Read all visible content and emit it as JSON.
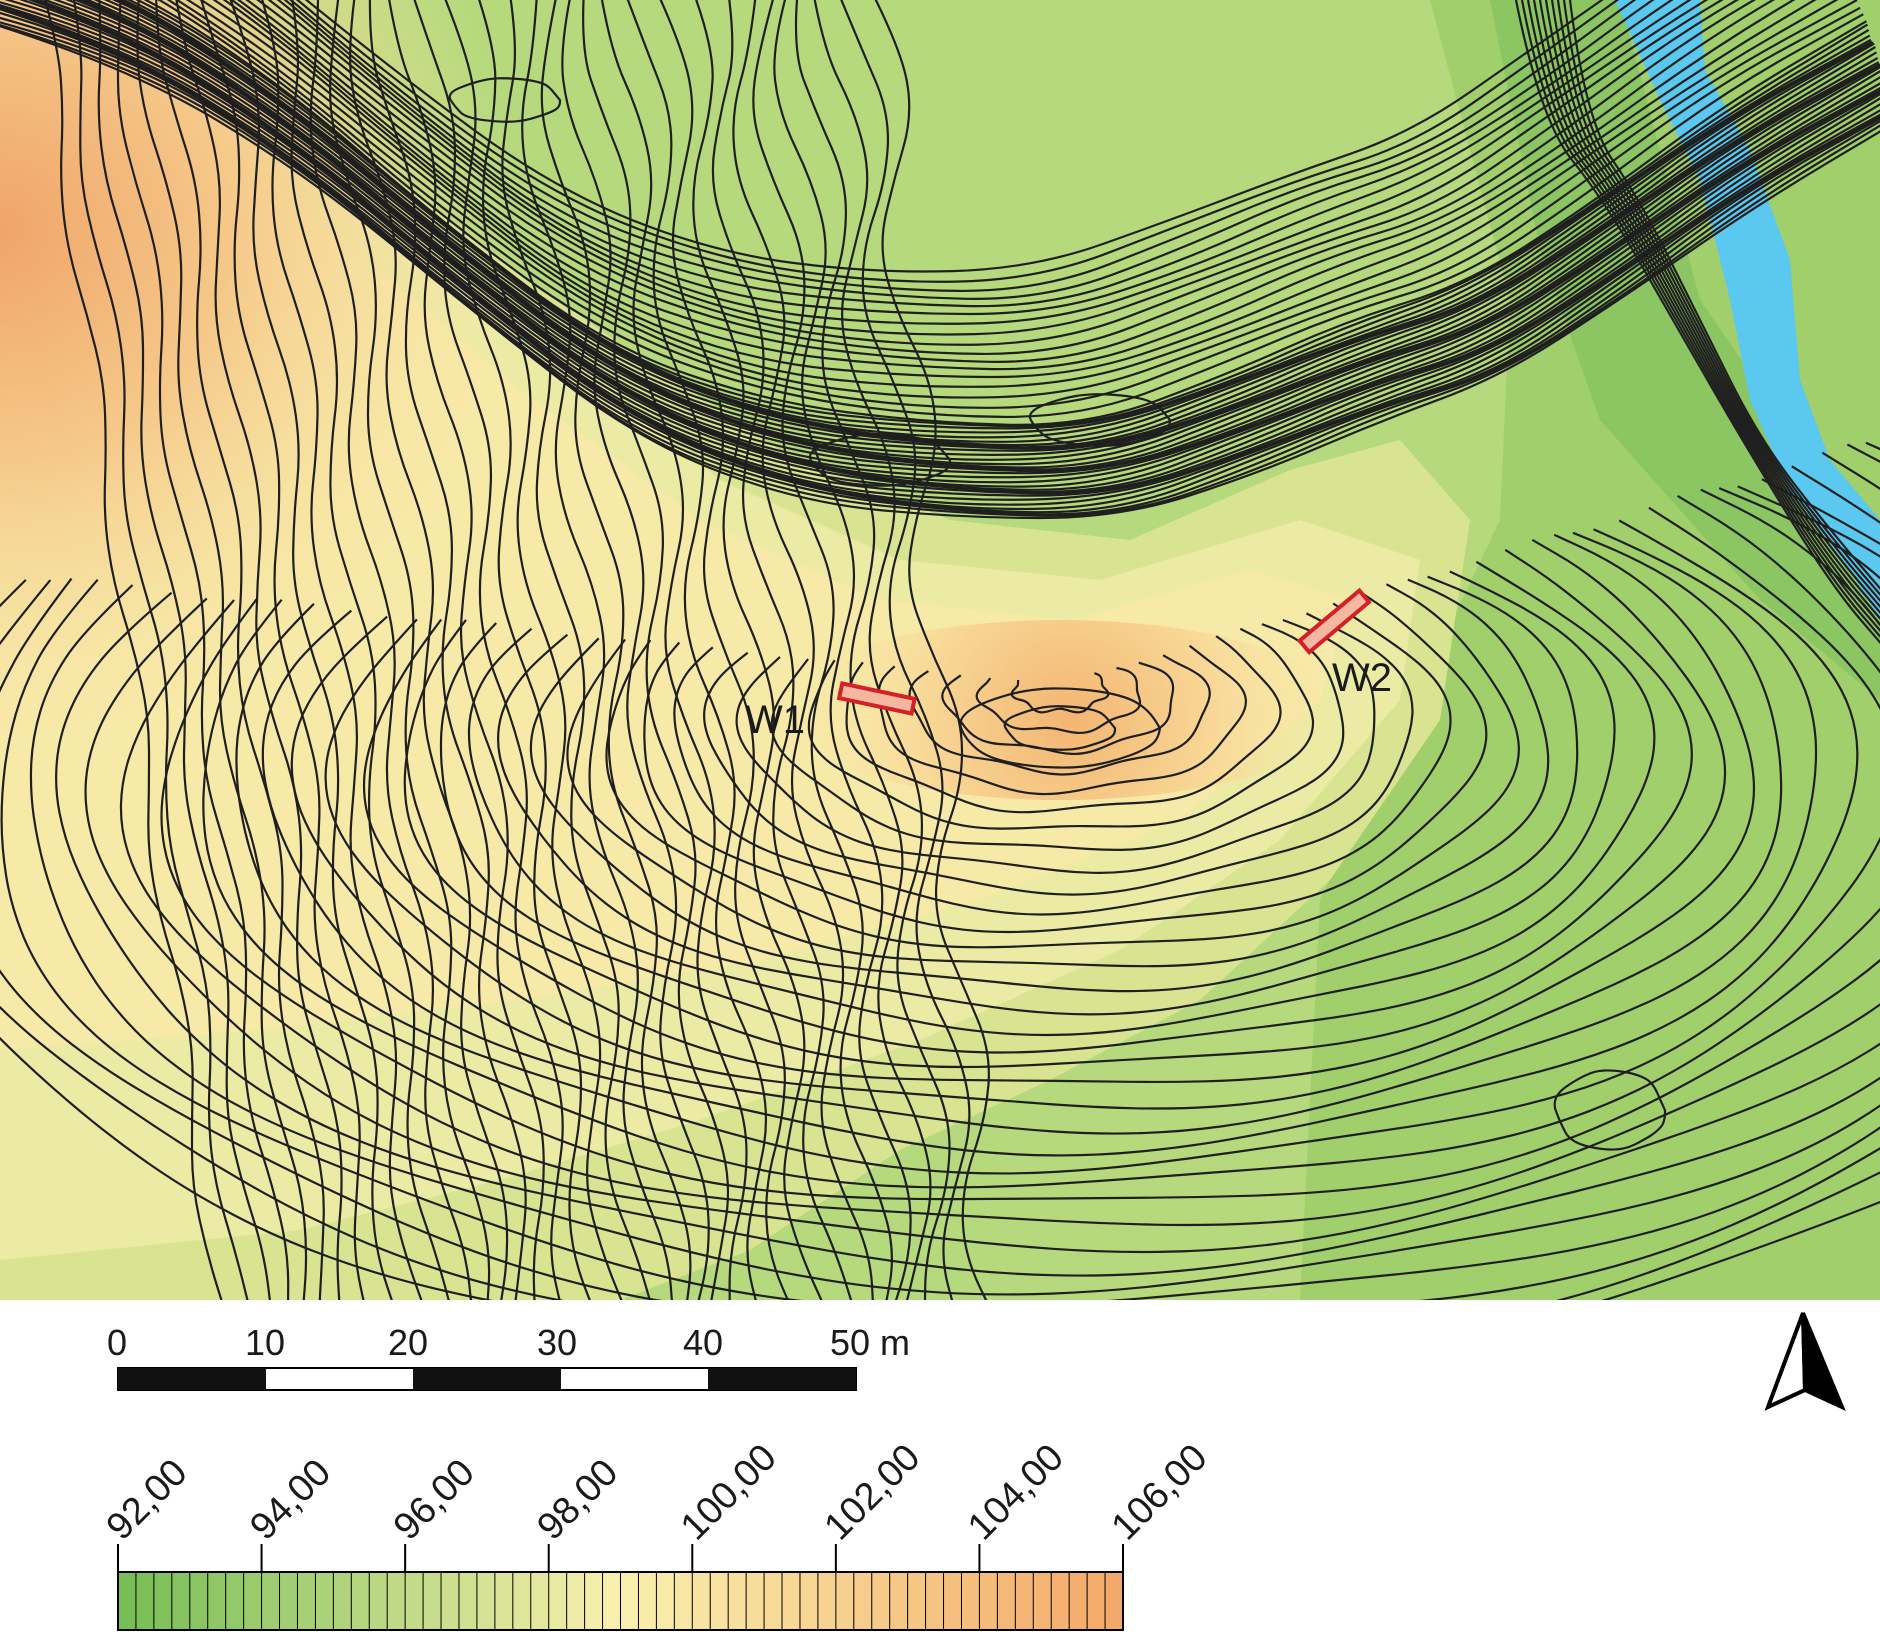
{
  "map": {
    "trenches": [
      {
        "label": "W1"
      },
      {
        "label": "W2"
      }
    ],
    "colors": {
      "low": "#76bd55",
      "mid": "#f9f0ad",
      "high": "#f3a868",
      "water": "#5bc8ef",
      "contour": "#1f1f1f",
      "trench": "#d42027"
    }
  },
  "scale_bar": {
    "ticks": [
      "0",
      "10",
      "20",
      "30",
      "40",
      "50 m"
    ]
  },
  "legend": {
    "labels": [
      "92,00",
      "94,00",
      "96,00",
      "98,00",
      "100,00",
      "102,00",
      "104,00",
      "106,00"
    ],
    "min": 92,
    "max": 106,
    "step": 0.25
  },
  "north_arrow": {
    "icon": "north-arrow-icon"
  }
}
